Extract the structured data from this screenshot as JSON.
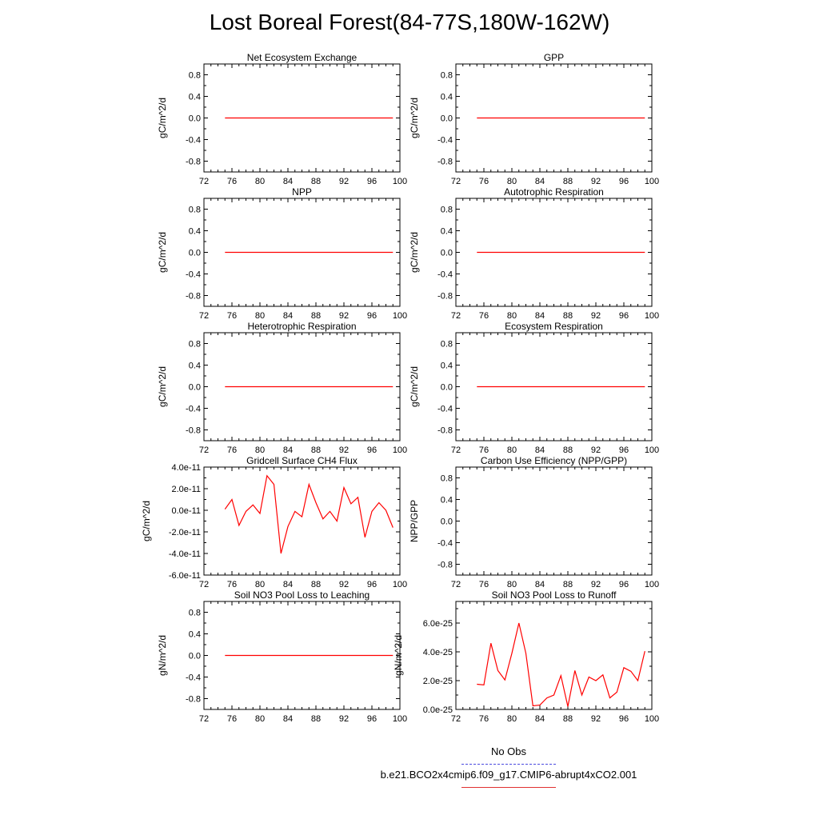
{
  "title": "Lost Boreal Forest(84-77S,180W-162W)",
  "colors": {
    "series": "#ff0000",
    "obs": "#4a4adf",
    "axis": "#000000"
  },
  "legend": {
    "obs_label": "No Obs",
    "case_label": "b.e21.BCO2x4cmip6.f09_g17.CMIP6-abrupt4xCO2.001"
  },
  "chart_data": [
    {
      "type": "line",
      "title": "Net Ecosystem Exchange",
      "ylabel": "gC/m^2/d",
      "xlim": [
        72,
        100
      ],
      "ylim": [
        -1,
        1
      ],
      "xticks": [
        "72",
        "76",
        "80",
        "84",
        "88",
        "92",
        "96",
        "100"
      ],
      "yticks": [
        "0.8",
        "0.4",
        "0.0",
        "-0.4",
        "-0.8"
      ],
      "ytick_values": [
        0.8,
        0.4,
        0,
        -0.4,
        -0.8
      ],
      "x": [
        75,
        99
      ],
      "y": [
        0,
        0
      ]
    },
    {
      "type": "line",
      "title": "GPP",
      "ylabel": "gC/m^2/d",
      "xlim": [
        72,
        100
      ],
      "ylim": [
        -1,
        1
      ],
      "xticks": [
        "72",
        "76",
        "80",
        "84",
        "88",
        "92",
        "96",
        "100"
      ],
      "yticks": [
        "0.8",
        "0.4",
        "0.0",
        "-0.4",
        "-0.8"
      ],
      "ytick_values": [
        0.8,
        0.4,
        0,
        -0.4,
        -0.8
      ],
      "x": [
        75,
        99
      ],
      "y": [
        0,
        0
      ]
    },
    {
      "type": "line",
      "title": "NPP",
      "ylabel": "gC/m^2/d",
      "xlim": [
        72,
        100
      ],
      "ylim": [
        -1,
        1
      ],
      "xticks": [
        "72",
        "76",
        "80",
        "84",
        "88",
        "92",
        "96",
        "100"
      ],
      "yticks": [
        "0.8",
        "0.4",
        "0.0",
        "-0.4",
        "-0.8"
      ],
      "ytick_values": [
        0.8,
        0.4,
        0,
        -0.4,
        -0.8
      ],
      "x": [
        75,
        99
      ],
      "y": [
        0,
        0
      ]
    },
    {
      "type": "line",
      "title": "Autotrophic Respiration",
      "ylabel": "gC/m^2/d",
      "xlim": [
        72,
        100
      ],
      "ylim": [
        -1,
        1
      ],
      "xticks": [
        "72",
        "76",
        "80",
        "84",
        "88",
        "92",
        "96",
        "100"
      ],
      "yticks": [
        "0.8",
        "0.4",
        "0.0",
        "-0.4",
        "-0.8"
      ],
      "ytick_values": [
        0.8,
        0.4,
        0,
        -0.4,
        -0.8
      ],
      "x": [
        75,
        99
      ],
      "y": [
        0,
        0
      ]
    },
    {
      "type": "line",
      "title": "Heterotrophic Respiration",
      "ylabel": "gC/m^2/d",
      "xlim": [
        72,
        100
      ],
      "ylim": [
        -1,
        1
      ],
      "xticks": [
        "72",
        "76",
        "80",
        "84",
        "88",
        "92",
        "96",
        "100"
      ],
      "yticks": [
        "0.8",
        "0.4",
        "0.0",
        "-0.4",
        "-0.8"
      ],
      "ytick_values": [
        0.8,
        0.4,
        0,
        -0.4,
        -0.8
      ],
      "x": [
        75,
        99
      ],
      "y": [
        0,
        0
      ]
    },
    {
      "type": "line",
      "title": "Ecosystem Respiration",
      "ylabel": "gC/m^2/d",
      "xlim": [
        72,
        100
      ],
      "ylim": [
        -1,
        1
      ],
      "xticks": [
        "72",
        "76",
        "80",
        "84",
        "88",
        "92",
        "96",
        "100"
      ],
      "yticks": [
        "0.8",
        "0.4",
        "0.0",
        "-0.4",
        "-0.8"
      ],
      "ytick_values": [
        0.8,
        0.4,
        0,
        -0.4,
        -0.8
      ],
      "x": [
        75,
        99
      ],
      "y": [
        0,
        0
      ]
    },
    {
      "type": "line",
      "title": "Gridcell Surface CH4 Flux",
      "ylabel": "gC/m^2/d",
      "xlim": [
        72,
        100
      ],
      "ylim": [
        -6e-11,
        4e-11
      ],
      "xticks": [
        "72",
        "76",
        "80",
        "84",
        "88",
        "92",
        "96",
        "100"
      ],
      "yticks": [
        "4.0e-11",
        "2.0e-11",
        "0.0e-11",
        "-2.0e-11",
        "-4.0e-11",
        "-6.0e-11"
      ],
      "ytick_values": [
        4e-11,
        2e-11,
        0,
        -2e-11,
        -4e-11,
        -6e-11
      ],
      "x": [
        75,
        76,
        77,
        78,
        79,
        80,
        81,
        82,
        83,
        84,
        85,
        86,
        87,
        88,
        89,
        90,
        91,
        92,
        93,
        94,
        95,
        96,
        97,
        98,
        99
      ],
      "y": [
        1e-12,
        1e-11,
        -1.4e-11,
        -1e-12,
        5e-12,
        -3e-12,
        3.2e-11,
        2.4e-11,
        -4e-11,
        -1.5e-11,
        -1e-12,
        -6e-12,
        2.4e-11,
        7e-12,
        -8e-12,
        -1e-12,
        -1e-11,
        2.1e-11,
        6e-12,
        1.2e-11,
        -2.5e-11,
        -1e-12,
        7e-12,
        0.0,
        -1.6e-11
      ]
    },
    {
      "type": "line",
      "title": "Carbon Use Efficiency (NPP/GPP)",
      "ylabel": "NPP/GPP",
      "xlim": [
        72,
        100
      ],
      "ylim": [
        -1,
        1
      ],
      "xticks": [
        "72",
        "76",
        "80",
        "84",
        "88",
        "92",
        "96",
        "100"
      ],
      "yticks": [
        "0.8",
        "0.4",
        "0.0",
        "-0.4",
        "-0.8"
      ],
      "ytick_values": [
        0.8,
        0.4,
        0,
        -0.4,
        -0.8
      ],
      "x": [],
      "y": []
    },
    {
      "type": "line",
      "title": "Soil NO3 Pool Loss to Leaching",
      "ylabel": "gN/m^2/d",
      "xlim": [
        72,
        100
      ],
      "ylim": [
        -1,
        1
      ],
      "xticks": [
        "72",
        "76",
        "80",
        "84",
        "88",
        "92",
        "96",
        "100"
      ],
      "yticks": [
        "0.8",
        "0.4",
        "0.0",
        "-0.4",
        "-0.8"
      ],
      "ytick_values": [
        0.8,
        0.4,
        0,
        -0.4,
        -0.8
      ],
      "x": [
        75,
        99
      ],
      "y": [
        0,
        0
      ]
    },
    {
      "type": "line",
      "title": "Soil NO3 Pool Loss to Runoff",
      "ylabel": "gN/m^2/d",
      "xlim": [
        72,
        100
      ],
      "ylim": [
        0,
        7.5e-25
      ],
      "xticks": [
        "72",
        "76",
        "80",
        "84",
        "88",
        "92",
        "96",
        "100"
      ],
      "yticks": [
        "6.0e-25",
        "4.0e-25",
        "2.0e-25",
        "0.0e-25"
      ],
      "ytick_values": [
        6e-25,
        4e-25,
        2e-25,
        0
      ],
      "x": [
        75,
        76,
        77,
        78,
        79,
        80,
        81,
        82,
        83,
        84,
        85,
        86,
        87,
        88,
        89,
        90,
        91,
        92,
        93,
        94,
        95,
        96,
        97,
        98,
        99
      ],
      "y": [
        1.75e-25,
        1.7e-25,
        4.6e-25,
        2.7e-25,
        2.05e-25,
        3.9e-25,
        6e-25,
        3.9e-25,
        2.5e-26,
        3e-26,
        8e-26,
        1e-25,
        2.35e-25,
        2e-26,
        2.7e-25,
        1e-25,
        2.25e-25,
        2e-25,
        2.4e-25,
        8e-26,
        1.2e-25,
        2.9e-25,
        2.65e-25,
        2e-25,
        4.05e-25
      ]
    }
  ]
}
